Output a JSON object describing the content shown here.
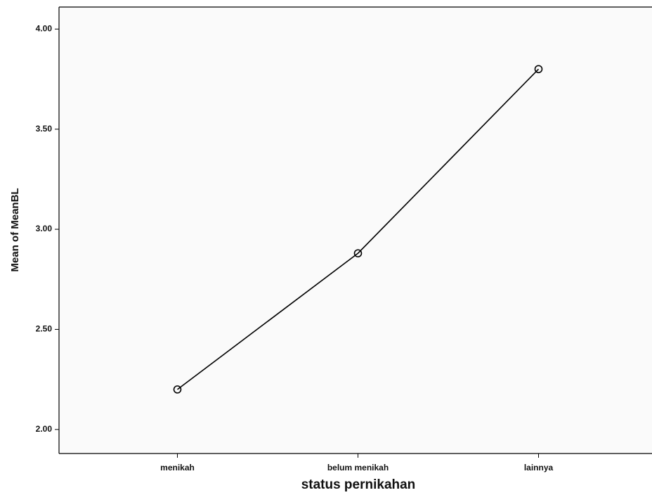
{
  "chart_data": {
    "type": "line",
    "x_label": "status pernikahan",
    "y_label": "Mean of MeanBL",
    "categories": [
      "menikah",
      "belum menikah",
      "lainnya"
    ],
    "values": [
      2.2,
      2.88,
      3.8
    ],
    "color": "#000000",
    "ylim": [
      1.88,
      4.11
    ],
    "yticks": [
      {
        "value": 2,
        "label": "2.00"
      },
      {
        "value": 2.5,
        "label": "2.50"
      },
      {
        "value": 3,
        "label": "3.00"
      },
      {
        "value": 3.5,
        "label": "3.50"
      },
      {
        "value": 4,
        "label": "4.00"
      }
    ],
    "markers": true
  }
}
